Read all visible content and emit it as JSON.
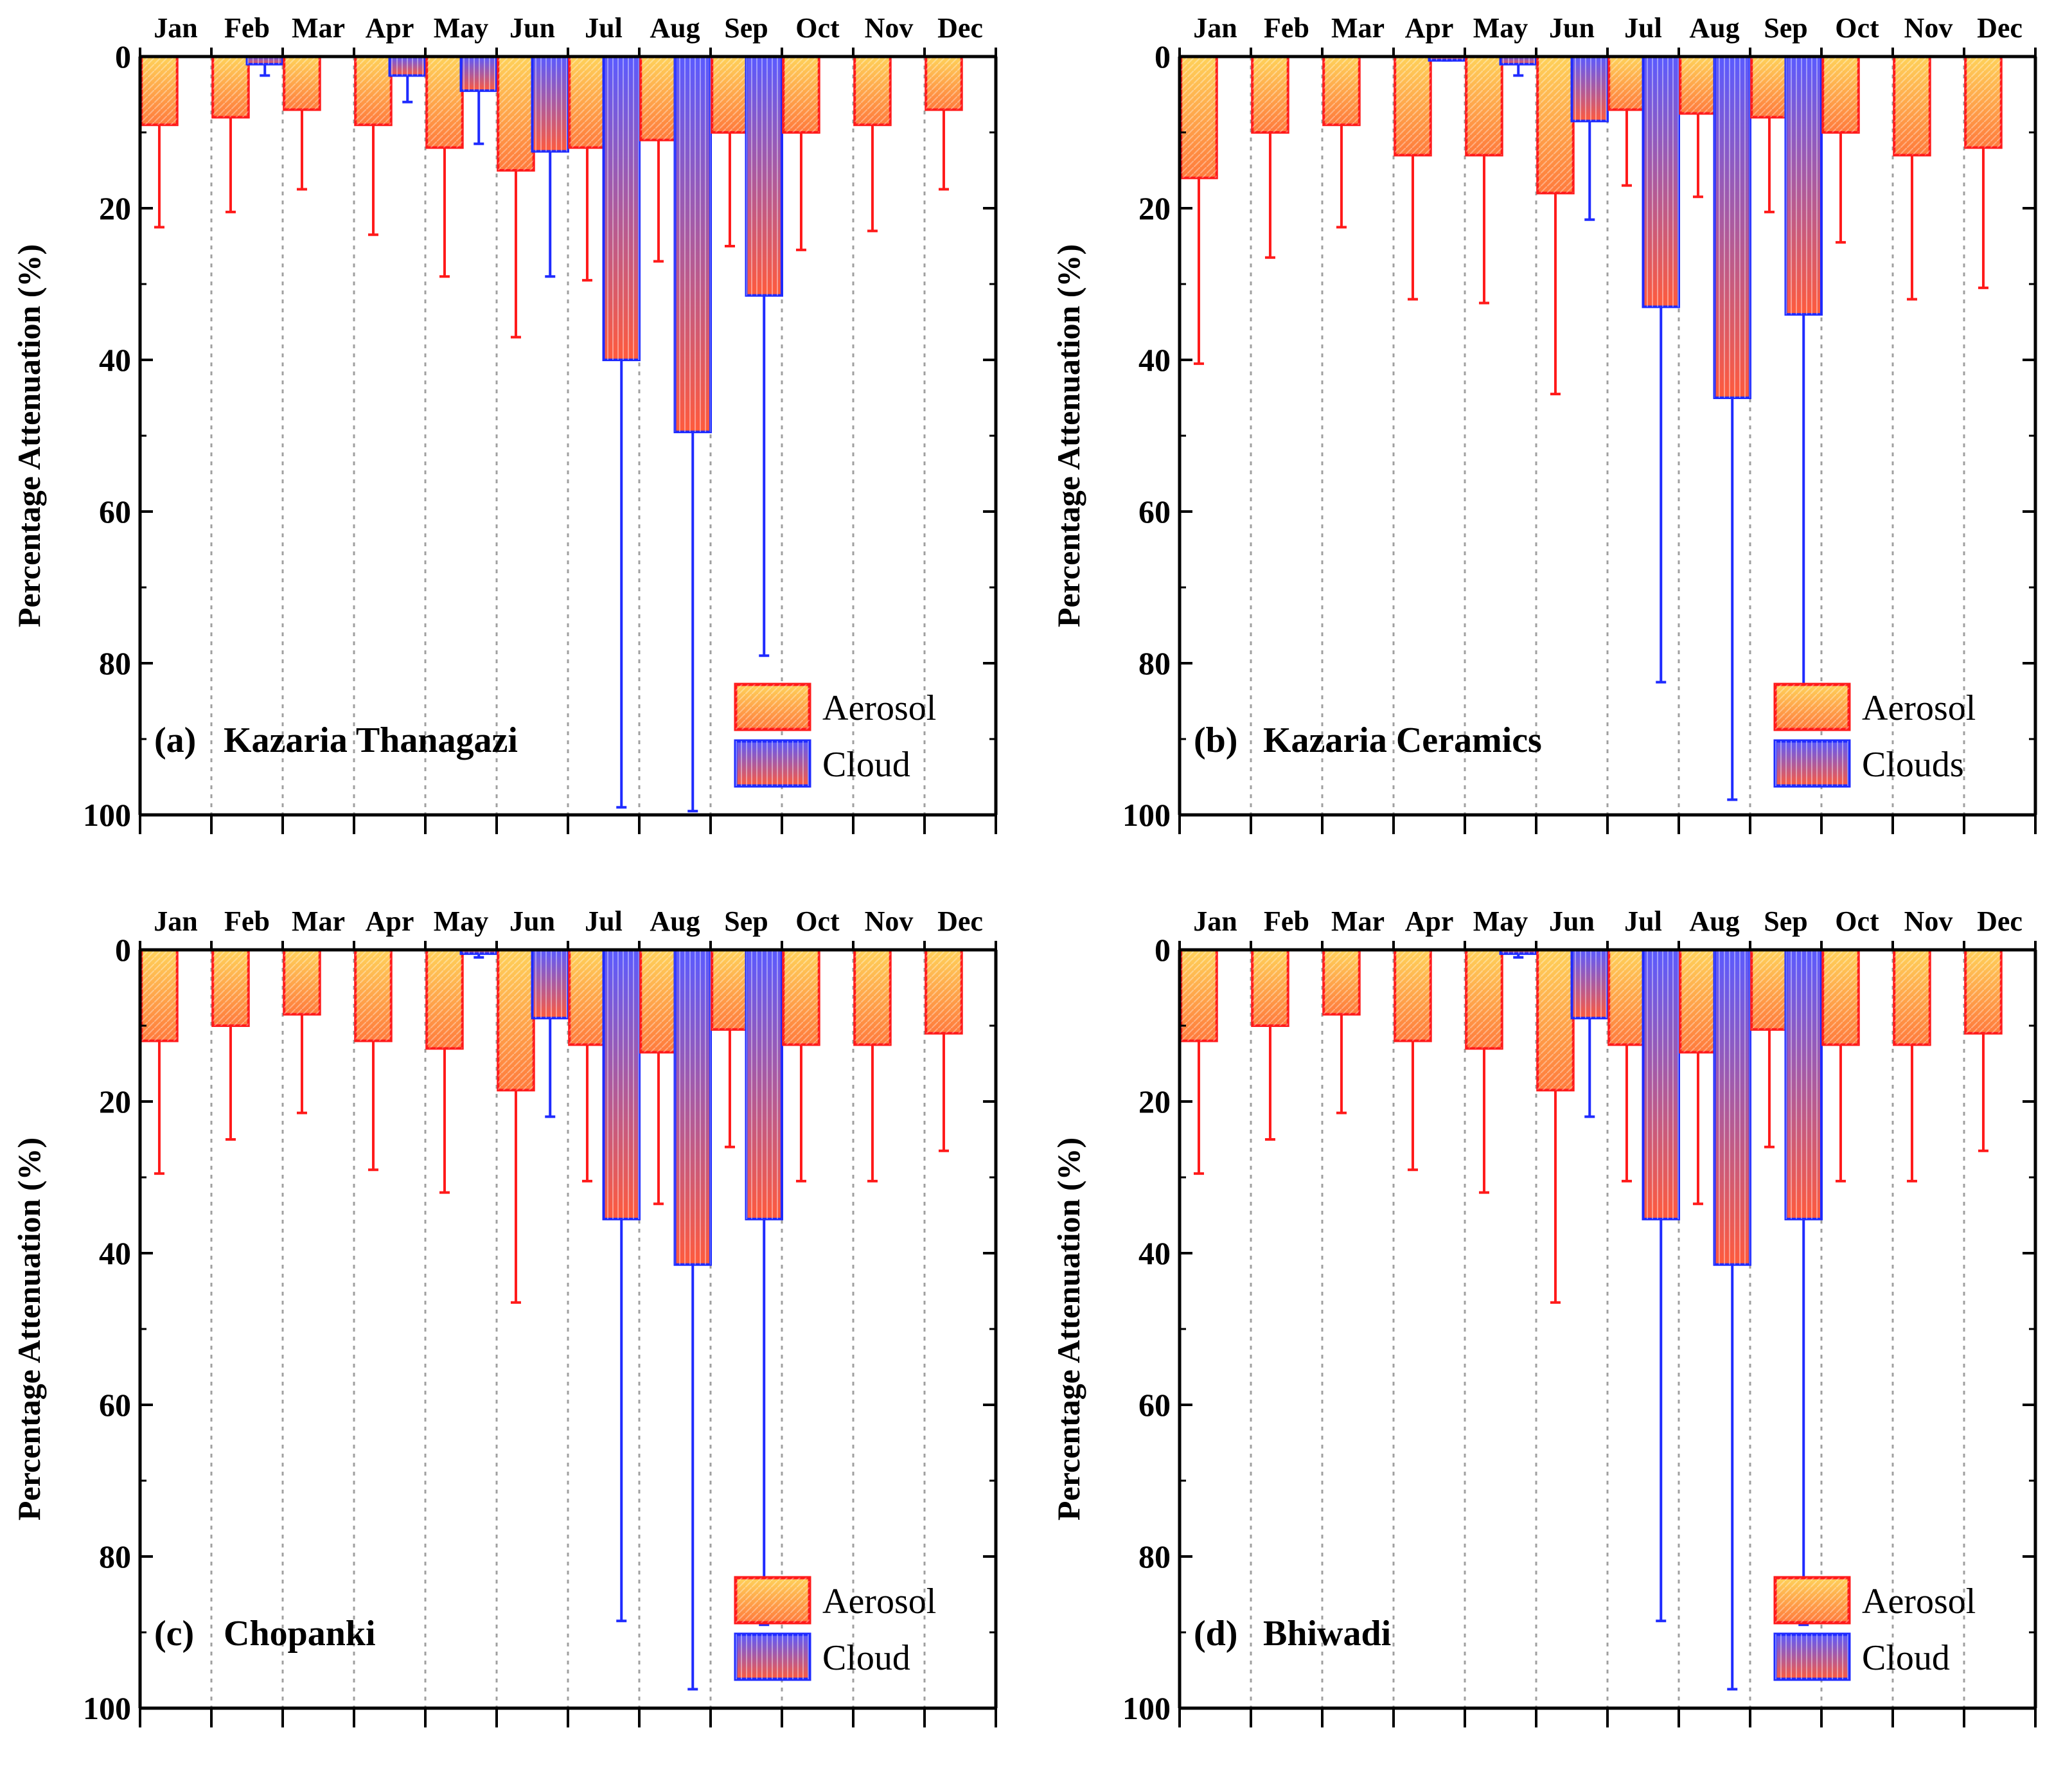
{
  "colors": {
    "aerosol_edge": "#ff1a1a",
    "aerosol_top": "#ffd25a",
    "aerosol_bottom": "#ff7a3c",
    "cloud_edge": "#1f2bff",
    "cloud_top": "#5a5aff",
    "cloud_bottom": "#ff5a3c",
    "grid": "#a0a0a0"
  },
  "chart_data": [
    {
      "type": "bar",
      "panel_label": "(a)",
      "title": "Kazaria Thanagazi",
      "ylabel": "Percentage Attenuation (%)",
      "ylim": [
        0,
        100
      ],
      "yticks": [
        "0",
        "20",
        "40",
        "60",
        "80",
        "100"
      ],
      "categories": [
        "Jan",
        "Feb",
        "Mar",
        "Apr",
        "May",
        "Jun",
        "Jul",
        "Aug",
        "Sep",
        "Oct",
        "Nov",
        "Dec"
      ],
      "legend": [
        "Aerosol",
        "Cloud"
      ],
      "legend_position": "bottom-right",
      "series": [
        {
          "name": "Aerosol",
          "values": [
            9,
            8,
            7,
            9,
            12,
            15,
            12,
            11,
            10,
            10,
            9,
            7
          ],
          "err": [
            22.5,
            20.5,
            17.5,
            23.5,
            29,
            37,
            29.5,
            27,
            25,
            25.5,
            23,
            17.5
          ]
        },
        {
          "name": "Cloud",
          "values": [
            0,
            1,
            0,
            2.5,
            4.5,
            12.5,
            40,
            49.5,
            31.5,
            0,
            0,
            0
          ],
          "err": [
            0,
            2.5,
            0,
            6,
            11.5,
            29,
            99,
            99.5,
            79,
            0,
            0,
            0
          ]
        }
      ]
    },
    {
      "type": "bar",
      "panel_label": "(b)",
      "title": "Kazaria Ceramics",
      "ylabel": "Percentage Attenuation (%)",
      "ylim": [
        0,
        100
      ],
      "yticks": [
        "0",
        "20",
        "40",
        "60",
        "80",
        "100"
      ],
      "categories": [
        "Jan",
        "Feb",
        "Mar",
        "Apr",
        "May",
        "Jun",
        "Jul",
        "Aug",
        "Sep",
        "Oct",
        "Nov",
        "Dec"
      ],
      "legend": [
        "Aerosol",
        "Clouds"
      ],
      "legend_position": "bottom-right",
      "series": [
        {
          "name": "Aerosol",
          "values": [
            16,
            10,
            9,
            13,
            13,
            18,
            7,
            7.5,
            8,
            10,
            13,
            12
          ],
          "err": [
            40.5,
            26.5,
            22.5,
            32,
            32.5,
            44.5,
            17,
            18.5,
            20.5,
            24.5,
            32,
            30.5
          ]
        },
        {
          "name": "Clouds",
          "values": [
            0,
            0,
            0,
            0.5,
            1,
            8.5,
            33,
            45,
            34,
            0,
            0,
            0
          ],
          "err": [
            0,
            0,
            0,
            0.5,
            2.5,
            21.5,
            82.5,
            98,
            85,
            0,
            0,
            0
          ]
        }
      ]
    },
    {
      "type": "bar",
      "panel_label": "(c)",
      "title": "Chopanki",
      "ylabel": "Percentage Attenuation (%)",
      "ylim": [
        0,
        100
      ],
      "yticks": [
        "0",
        "20",
        "40",
        "60",
        "80",
        "100"
      ],
      "categories": [
        "Jan",
        "Feb",
        "Mar",
        "Apr",
        "May",
        "Jun",
        "Jul",
        "Aug",
        "Sep",
        "Oct",
        "Nov",
        "Dec"
      ],
      "legend": [
        "Aerosol",
        "Cloud"
      ],
      "legend_position": "bottom-right",
      "series": [
        {
          "name": "Aerosol",
          "values": [
            12,
            10,
            8.5,
            12,
            13,
            18.5,
            12.5,
            13.5,
            10.5,
            12.5,
            12.5,
            11
          ],
          "err": [
            29.5,
            25,
            21.5,
            29,
            32,
            46.5,
            30.5,
            33.5,
            26,
            30.5,
            30.5,
            26.5
          ]
        },
        {
          "name": "Cloud",
          "values": [
            0,
            0,
            0,
            0,
            0.5,
            9,
            35.5,
            41.5,
            35.5,
            0,
            0,
            0
          ],
          "err": [
            0,
            0,
            0,
            0,
            1,
            22,
            88.5,
            97.5,
            89,
            0,
            0,
            0
          ]
        }
      ]
    },
    {
      "type": "bar",
      "panel_label": "(d)",
      "title": "Bhiwadi",
      "ylabel": "Percentage Attenuation (%)",
      "ylim": [
        0,
        100
      ],
      "yticks": [
        "0",
        "20",
        "40",
        "60",
        "80",
        "100"
      ],
      "categories": [
        "Jan",
        "Feb",
        "Mar",
        "Apr",
        "May",
        "Jun",
        "Jul",
        "Aug",
        "Sep",
        "Oct",
        "Nov",
        "Dec"
      ],
      "legend": [
        "Aerosol",
        "Cloud"
      ],
      "legend_position": "bottom-right",
      "series": [
        {
          "name": "Aerosol",
          "values": [
            12,
            10,
            8.5,
            12,
            13,
            18.5,
            12.5,
            13.5,
            10.5,
            12.5,
            12.5,
            11
          ],
          "err": [
            29.5,
            25,
            21.5,
            29,
            32,
            46.5,
            30.5,
            33.5,
            26,
            30.5,
            30.5,
            26.5
          ]
        },
        {
          "name": "Cloud",
          "values": [
            0,
            0,
            0,
            0,
            0.5,
            9,
            35.5,
            41.5,
            35.5,
            0,
            0,
            0
          ],
          "err": [
            0,
            0,
            0,
            0,
            1,
            22,
            88.5,
            97.5,
            89,
            0,
            0,
            0
          ]
        }
      ]
    }
  ]
}
